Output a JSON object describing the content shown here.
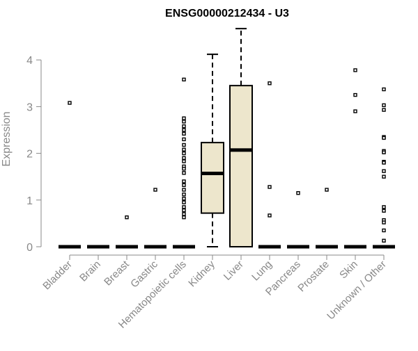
{
  "chart_data": {
    "type": "boxplot",
    "title": "ENSG00000212434 - U3",
    "ylabel": "Expression",
    "xlabel": "",
    "ylim": [
      0,
      4.7
    ],
    "yticks": [
      "0",
      "1",
      "2",
      "3",
      "4"
    ],
    "categories": [
      "Bladder",
      "Brain",
      "Breast",
      "Gastric",
      "Hematopoietic cells",
      "Kidney",
      "Liver",
      "Lung",
      "Pancreas",
      "Prostate",
      "Skin",
      "Unknown / Other"
    ],
    "box_color": "#ede6cc",
    "boxes": [
      {
        "min": 0,
        "q1": 0,
        "median": 0,
        "q3": 0,
        "max": 0,
        "outliers": [
          3.08
        ]
      },
      {
        "min": 0,
        "q1": 0,
        "median": 0,
        "q3": 0,
        "max": 0,
        "outliers": []
      },
      {
        "min": 0,
        "q1": 0,
        "median": 0,
        "q3": 0,
        "max": 0,
        "outliers": [
          0.63
        ]
      },
      {
        "min": 0,
        "q1": 0,
        "median": 0,
        "q3": 0,
        "max": 0,
        "outliers": [
          1.22
        ]
      },
      {
        "min": 0,
        "q1": 0,
        "median": 0,
        "q3": 0,
        "max": 0,
        "outliers": [
          3.58,
          2.75,
          2.68,
          2.58,
          2.5,
          2.42,
          2.3,
          2.18,
          2.08,
          2.0,
          1.9,
          1.83,
          1.72,
          1.67,
          1.58,
          1.4,
          1.32,
          1.22,
          1.12,
          1.03,
          0.95,
          0.85,
          0.78,
          0.7,
          0.63
        ]
      },
      {
        "min": 0,
        "q1": 0.72,
        "median": 1.57,
        "q3": 2.23,
        "max": 4.12,
        "outliers": []
      },
      {
        "min": 0,
        "q1": 0,
        "median": 2.07,
        "q3": 3.45,
        "max": 4.67,
        "outliers": []
      },
      {
        "min": 0,
        "q1": 0,
        "median": 0,
        "q3": 0,
        "max": 0,
        "outliers": [
          3.5,
          1.28,
          0.67
        ]
      },
      {
        "min": 0,
        "q1": 0,
        "median": 0,
        "q3": 0,
        "max": 0,
        "outliers": [
          1.15
        ]
      },
      {
        "min": 0,
        "q1": 0,
        "median": 0,
        "q3": 0,
        "max": 0,
        "outliers": [
          1.22
        ]
      },
      {
        "min": 0,
        "q1": 0,
        "median": 0,
        "q3": 0,
        "max": 0,
        "outliers": [
          3.78,
          3.25,
          2.9
        ]
      },
      {
        "min": 0,
        "q1": 0,
        "median": 0,
        "q3": 0,
        "max": 0,
        "outliers": [
          3.37,
          3.03,
          2.93,
          2.35,
          2.33,
          2.05,
          2.02,
          1.82,
          1.8,
          1.62,
          1.5,
          0.85,
          0.77,
          0.57,
          0.52,
          0.35,
          0.13
        ]
      }
    ]
  }
}
